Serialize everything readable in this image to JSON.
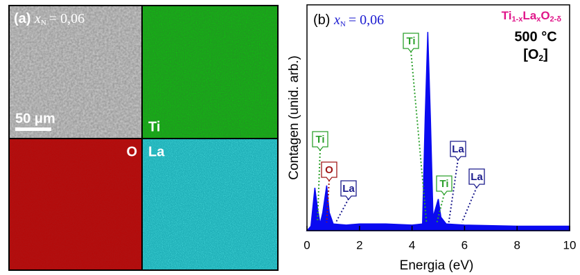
{
  "panel_a": {
    "label": "(a)",
    "var": "x",
    "sub": "N",
    "eq": "= 0,06",
    "scale": "50 μm",
    "maps": [
      "Ti",
      "O",
      "La"
    ]
  },
  "chart_data": {
    "type": "area",
    "color": "#0a0af0",
    "title": {
      "label": "(b)",
      "var": "x",
      "sub": "N",
      "eq": "= 0,06"
    },
    "formula": [
      "Ti",
      "1-x",
      "La",
      "x",
      "O",
      "2-δ"
    ],
    "formula_color": "#e0168a",
    "temperature": "500 °C",
    "atmosphere": [
      "[O",
      "2",
      "]"
    ],
    "xlabel": "Energia (eV)",
    "ylabel": "Contagen (unid. arb.)",
    "xlim": [
      0,
      10
    ],
    "xticks": [
      0,
      2,
      4,
      6,
      8,
      10
    ],
    "ylim": [
      0,
      100
    ],
    "x": [
      0,
      0.15,
      0.3,
      0.4,
      0.5,
      0.6,
      0.75,
      0.85,
      1.0,
      1.5,
      2,
      3,
      4,
      4.4,
      4.5,
      4.6,
      4.7,
      4.8,
      4.9,
      5.0,
      5.1,
      5.3,
      6,
      8,
      10
    ],
    "values": [
      0,
      2,
      19,
      10,
      3,
      8,
      20,
      8,
      3,
      2.5,
      3,
      3,
      2.5,
      3,
      50,
      88,
      50,
      6,
      10,
      14,
      6,
      3,
      2.5,
      2,
      2
    ],
    "annotations": [
      {
        "text": "Ti",
        "x": 0.4,
        "color": "#2ca02c"
      },
      {
        "text": "O",
        "x": 0.75,
        "color": "#a01818"
      },
      {
        "text": "La",
        "x": 1.1,
        "color": "#1a1a8c"
      },
      {
        "text": "Ti",
        "x": 4.55,
        "color": "#2ca02c"
      },
      {
        "text": "Ti",
        "x": 4.95,
        "color": "#2ca02c"
      },
      {
        "text": "La",
        "x": 5.4,
        "color": "#1a1a8c"
      },
      {
        "text": "La",
        "x": 5.9,
        "color": "#1a1a8c"
      }
    ]
  }
}
